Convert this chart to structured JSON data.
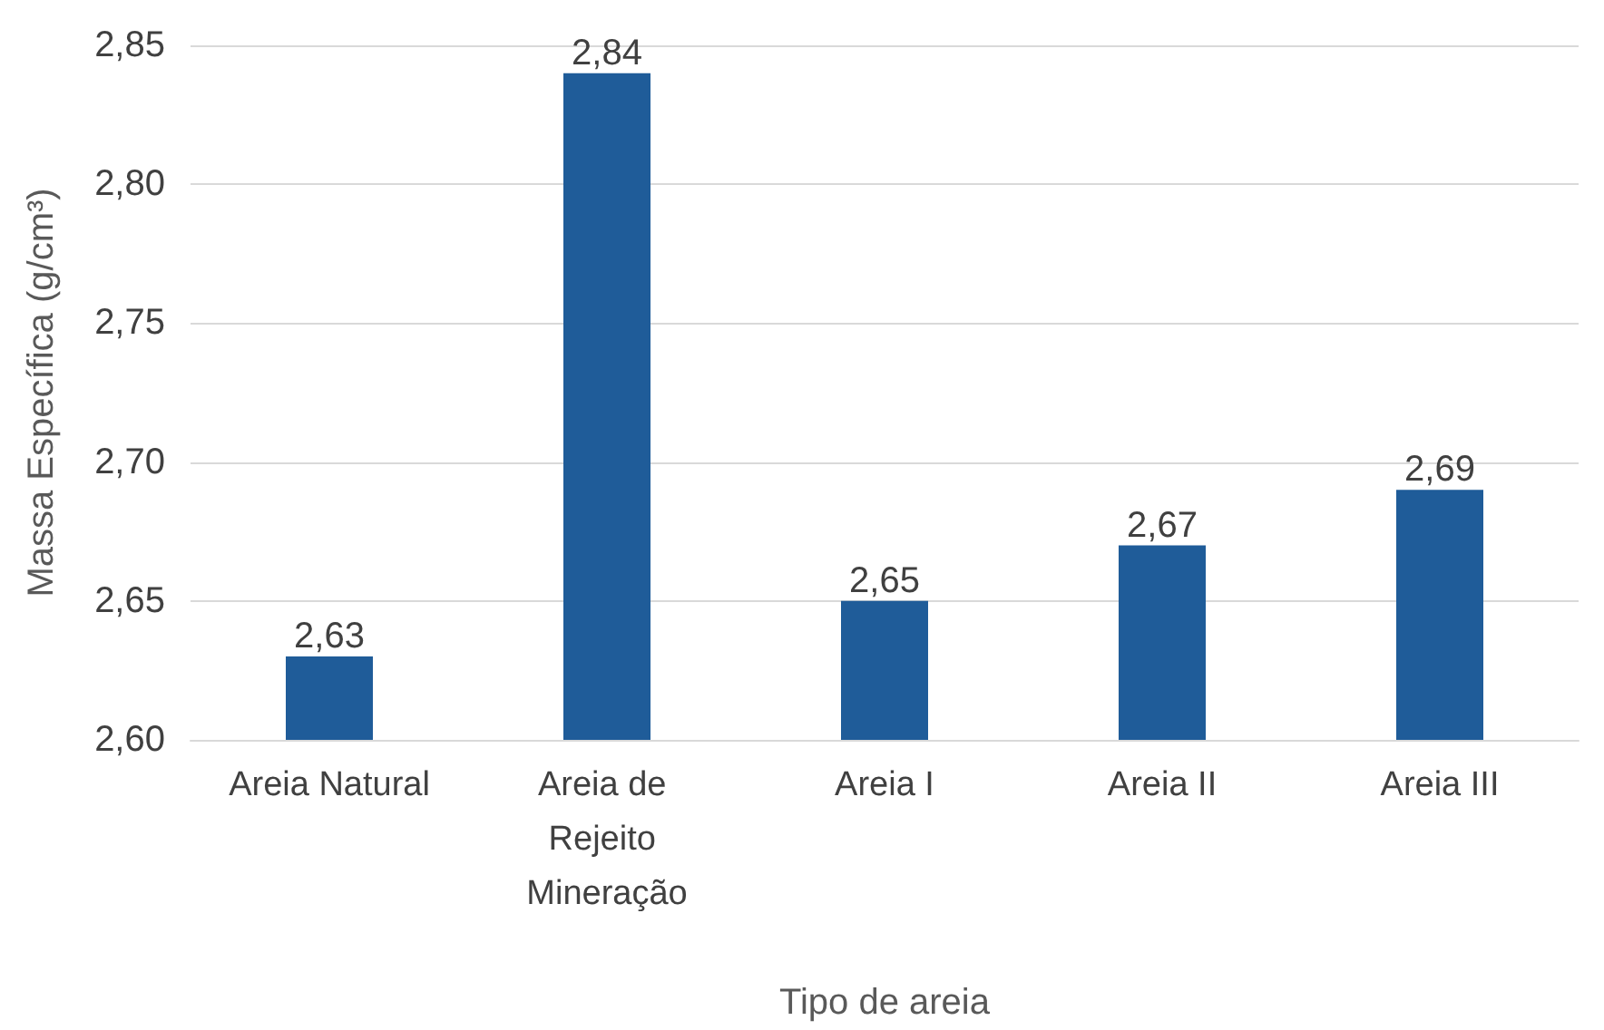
{
  "chart_data": {
    "type": "bar",
    "xlabel": "Tipo de areia",
    "ylabel": "Massa Específica (g/cm³)",
    "categories": [
      "Areia Natural",
      "Areia de Rejeito Mineração",
      "Areia I",
      "Areia II",
      "Areia III"
    ],
    "values": [
      2.63,
      2.84,
      2.65,
      2.67,
      2.69
    ],
    "value_labels": [
      "2,63",
      "2,84",
      "2,65",
      "2,67",
      "2,69"
    ],
    "color": "#1f5c99",
    "ylim": [
      2.6,
      2.85
    ],
    "yticks": [
      {
        "value": 2.6,
        "label": "2,60"
      },
      {
        "value": 2.65,
        "label": "2,65"
      },
      {
        "value": 2.7,
        "label": "2,70"
      },
      {
        "value": 2.75,
        "label": "2,75"
      },
      {
        "value": 2.8,
        "label": "2,80"
      },
      {
        "value": 2.85,
        "label": "2,85"
      }
    ],
    "grid": "y"
  }
}
